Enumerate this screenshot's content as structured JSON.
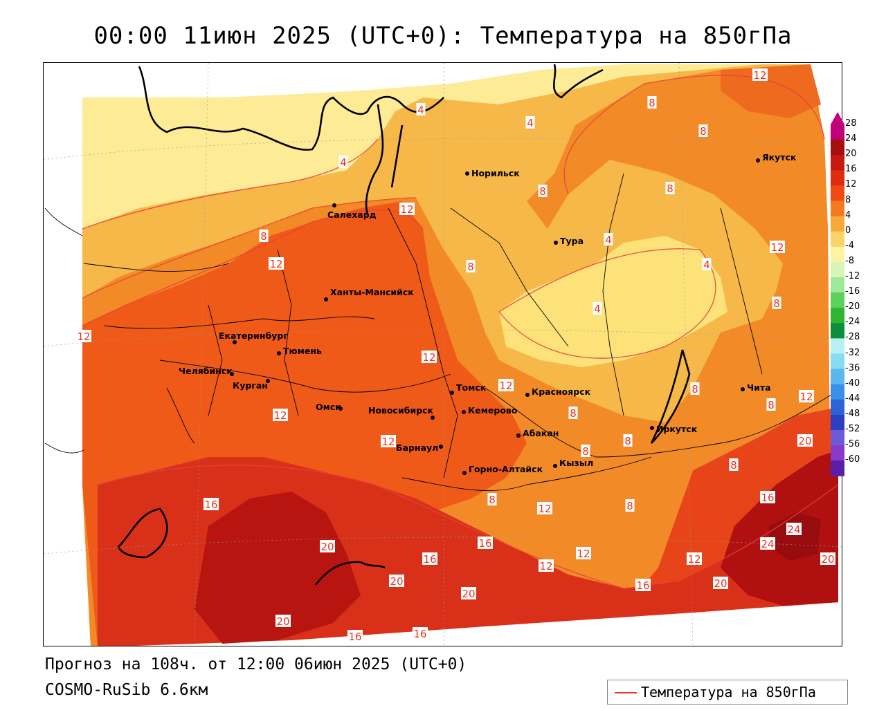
{
  "title": "00:00 11июн 2025 (UTC+0): Температура на 850гПа",
  "footer": {
    "forecast": "Прогноз на 108ч. от 12:00 06июн 2025 (UTC+0)",
    "model": "COSMO-RuSib 6.6км"
  },
  "legend": {
    "label": "Температура на 850гПа",
    "line_color": "#e83a2a"
  },
  "colorbar": {
    "ticks": [
      "28",
      "24",
      "20",
      "16",
      "12",
      "8",
      "4",
      "0",
      "-4",
      "-8",
      "-12",
      "-16",
      "-20",
      "-24",
      "-28",
      "-32",
      "-36",
      "-40",
      "-44",
      "-48",
      "-52",
      "-56",
      "-60"
    ],
    "colors": [
      "#c0007a",
      "#a50f0f",
      "#c41a10",
      "#e02a12",
      "#f04a14",
      "#f47a20",
      "#f7aa3a",
      "#fbd36a",
      "#fdf3a0",
      "#d8f5b8",
      "#9ee89a",
      "#5ed05e",
      "#2fb52f",
      "#0d8f3a",
      "#b8f0f4",
      "#86dcf0",
      "#5ab8ee",
      "#3a8fe6",
      "#2d63d6",
      "#2b3fc0",
      "#6f5ad6",
      "#8a3ac8",
      "#5a1ea8"
    ]
  },
  "cities": [
    {
      "name": "Норильск"
    },
    {
      "name": "Салехард"
    },
    {
      "name": "Якутск"
    },
    {
      "name": "Тура"
    },
    {
      "name": "Ханты-Мансийск"
    },
    {
      "name": "Екатеринбург"
    },
    {
      "name": "Тюмень"
    },
    {
      "name": "Челябинск"
    },
    {
      "name": "Курган"
    },
    {
      "name": "Омск"
    },
    {
      "name": "Новосибирск"
    },
    {
      "name": "Томск"
    },
    {
      "name": "Кемерово"
    },
    {
      "name": "Красноярск"
    },
    {
      "name": "Абакан"
    },
    {
      "name": "Барнаул"
    },
    {
      "name": "Горно-Алтайск"
    },
    {
      "name": "Кызыл"
    },
    {
      "name": "Иркутск"
    },
    {
      "name": "Чита"
    }
  ],
  "contour_labels": [
    "12",
    "8",
    "8",
    "8",
    "4",
    "4",
    "4",
    "12",
    "8",
    "8",
    "12",
    "4",
    "8",
    "4",
    "12",
    "8",
    "4",
    "8",
    "12",
    "8",
    "12",
    "12",
    "8",
    "8",
    "8",
    "12",
    "12",
    "12",
    "8",
    "8",
    "20",
    "12",
    "16",
    "16",
    "20",
    "16",
    "8",
    "24",
    "24",
    "16",
    "12",
    "12",
    "20",
    "20",
    "12",
    "16",
    "20",
    "20",
    "20",
    "16",
    "16"
  ]
}
